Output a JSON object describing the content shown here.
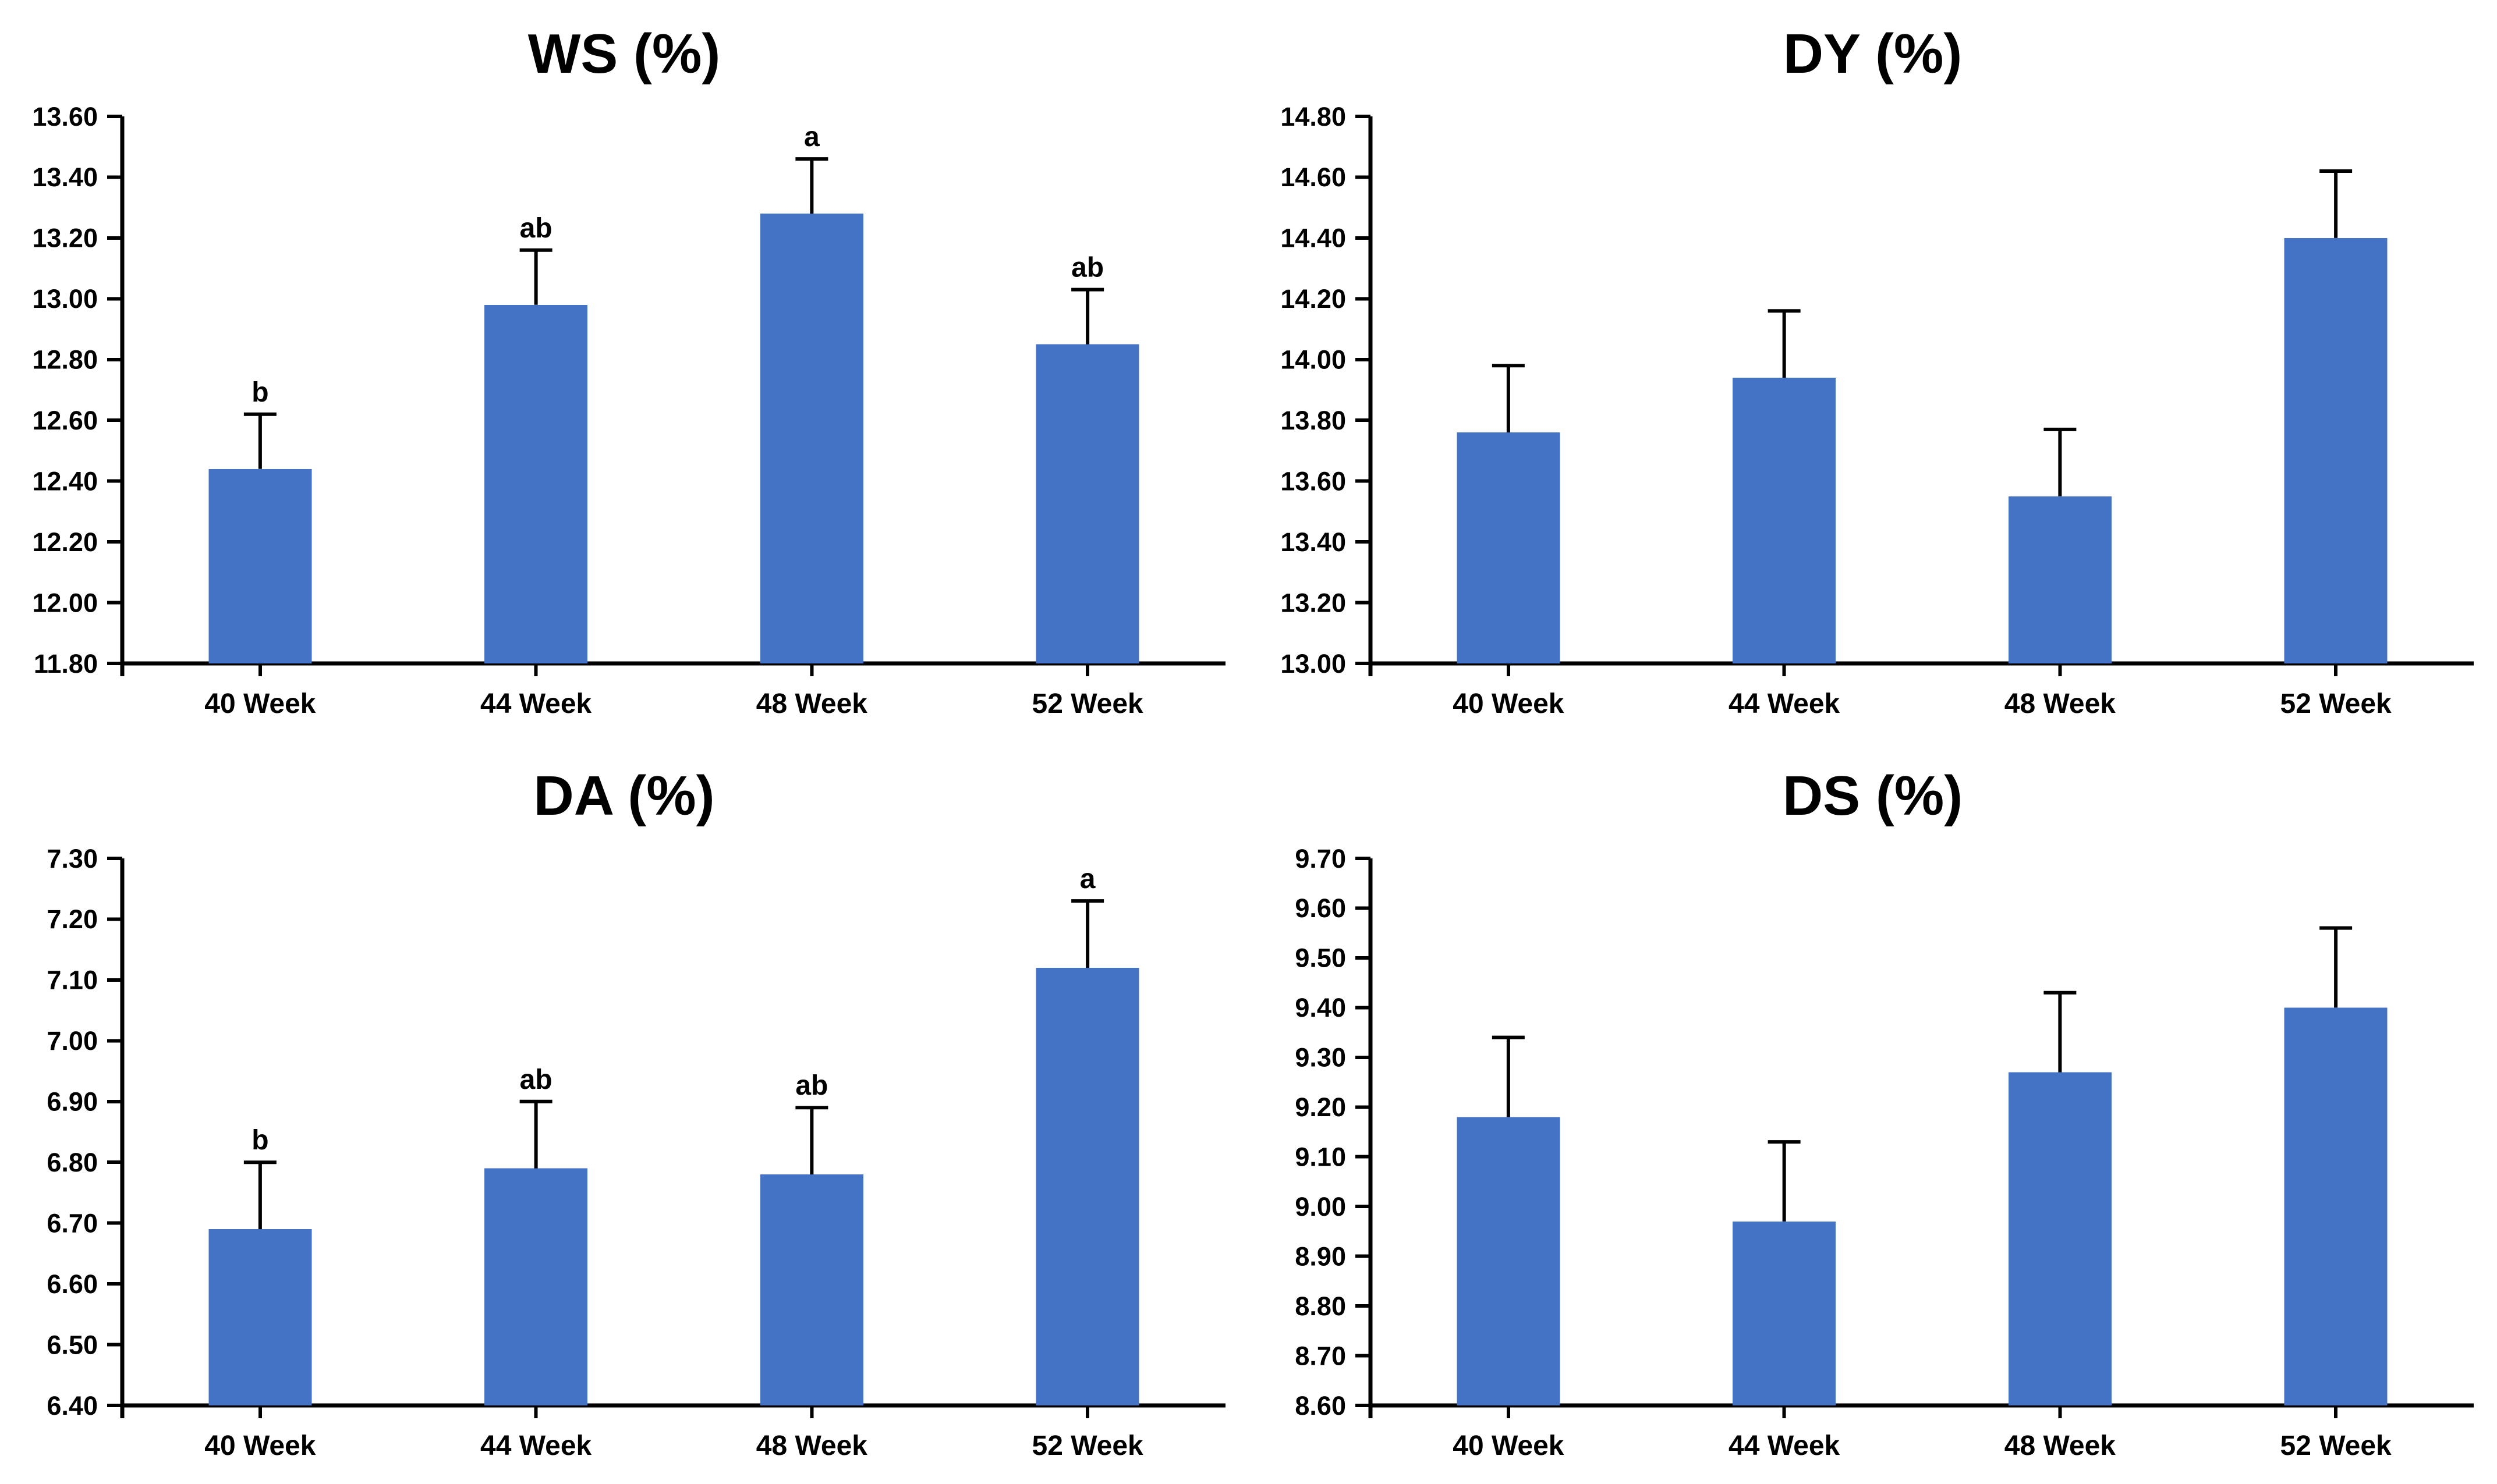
{
  "figure": {
    "layout": "2x2 grid of bar charts",
    "background": "#ffffff"
  },
  "style": {
    "bar_color": "#4472C4",
    "axis_color": "#000000",
    "error_bar_color": "#000000",
    "text_color": "#000000"
  },
  "chart_data": [
    {
      "type": "bar",
      "title": "WS (%)",
      "categories": [
        "40 Week",
        "44 Week",
        "48 Week",
        "52 Week"
      ],
      "values": [
        12.44,
        12.98,
        13.28,
        12.85
      ],
      "errors_upper": [
        0.18,
        0.18,
        0.18,
        0.18
      ],
      "sig_letters": [
        "b",
        "ab",
        "a",
        "ab"
      ],
      "ylim": [
        11.8,
        13.6
      ],
      "ytick_step": 0.2,
      "ytick_format": "0.00",
      "xlabel": "",
      "ylabel": "",
      "grid": false,
      "legend_position": "none"
    },
    {
      "type": "bar",
      "title": "DY (%)",
      "categories": [
        "40 Week",
        "44 Week",
        "48 Week",
        "52 Week"
      ],
      "values": [
        13.76,
        13.94,
        13.55,
        14.4
      ],
      "errors_upper": [
        0.22,
        0.22,
        0.22,
        0.22
      ],
      "ylim": [
        13.0,
        14.8
      ],
      "ytick_step": 0.2,
      "ytick_format": "0.00",
      "xlabel": "",
      "ylabel": "",
      "grid": false,
      "legend_position": "none"
    },
    {
      "type": "bar",
      "title": "DA (%)",
      "categories": [
        "40 Week",
        "44 Week",
        "48 Week",
        "52 Week"
      ],
      "values": [
        6.69,
        6.79,
        6.78,
        7.12
      ],
      "errors_upper": [
        0.11,
        0.11,
        0.11,
        0.11
      ],
      "sig_letters": [
        "b",
        "ab",
        "ab",
        "a"
      ],
      "ylim": [
        6.4,
        7.3
      ],
      "ytick_step": 0.1,
      "ytick_format": "0.00",
      "xlabel": "",
      "ylabel": "",
      "grid": false,
      "legend_position": "none"
    },
    {
      "type": "bar",
      "title": "DS (%)",
      "categories": [
        "40 Week",
        "44 Week",
        "48 Week",
        "52 Week"
      ],
      "values": [
        9.18,
        8.97,
        9.27,
        9.4
      ],
      "errors_upper": [
        0.16,
        0.16,
        0.16,
        0.16
      ],
      "ylim": [
        8.6,
        9.7
      ],
      "ytick_step": 0.1,
      "ytick_format": "0.00",
      "xlabel": "",
      "ylabel": "",
      "grid": false,
      "legend_position": "none"
    }
  ]
}
